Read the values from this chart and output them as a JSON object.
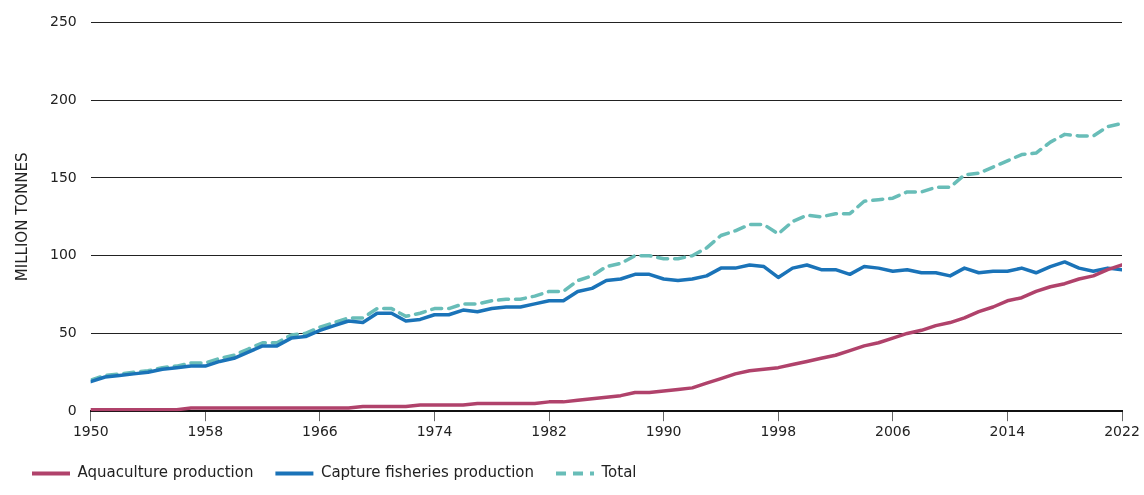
{
  "chart_data": {
    "type": "line",
    "x": [
      1950,
      1951,
      1952,
      1953,
      1954,
      1955,
      1956,
      1957,
      1958,
      1959,
      1960,
      1961,
      1962,
      1963,
      1964,
      1965,
      1966,
      1967,
      1968,
      1969,
      1970,
      1971,
      1972,
      1973,
      1974,
      1975,
      1976,
      1977,
      1978,
      1979,
      1980,
      1981,
      1982,
      1983,
      1984,
      1985,
      1986,
      1987,
      1988,
      1989,
      1990,
      1991,
      1992,
      1993,
      1994,
      1995,
      1996,
      1997,
      1998,
      1999,
      2000,
      2001,
      2002,
      2003,
      2004,
      2005,
      2006,
      2007,
      2008,
      2009,
      2010,
      2011,
      2012,
      2013,
      2014,
      2015,
      2016,
      2017,
      2018,
      2019,
      2020,
      2021,
      2022
    ],
    "series": [
      {
        "name": "Aquaculture production",
        "color": "#b0426b",
        "line_style": "solid",
        "values": [
          1,
          1,
          1,
          1,
          1,
          1,
          1,
          2,
          2,
          2,
          2,
          2,
          2,
          2,
          2,
          2,
          2,
          2,
          2,
          3,
          3,
          3,
          3,
          4,
          4,
          4,
          4,
          5,
          5,
          5,
          5,
          5,
          6,
          6,
          7,
          8,
          9,
          10,
          12,
          12,
          13,
          14,
          15,
          18,
          21,
          24,
          26,
          27,
          28,
          30,
          32,
          34,
          36,
          39,
          42,
          44,
          47,
          50,
          52,
          55,
          57,
          60,
          64,
          67,
          71,
          73,
          77,
          80,
          82,
          85,
          87,
          91,
          94
        ]
      },
      {
        "name": "Capture fisheries production",
        "color": "#1a73b8",
        "line_style": "solid",
        "values": [
          19,
          22,
          23,
          24,
          25,
          27,
          28,
          29,
          29,
          32,
          34,
          38,
          42,
          42,
          47,
          48,
          52,
          55,
          58,
          57,
          63,
          63,
          58,
          59,
          62,
          62,
          65,
          64,
          66,
          67,
          67,
          69,
          71,
          71,
          77,
          79,
          84,
          85,
          88,
          88,
          85,
          84,
          85,
          87,
          92,
          92,
          94,
          93,
          86,
          92,
          94,
          91,
          91,
          88,
          93,
          92,
          90,
          91,
          89,
          89,
          87,
          92,
          89,
          90,
          90,
          92,
          89,
          93,
          96,
          92,
          90,
          92,
          91
        ]
      },
      {
        "name": "Total",
        "color": "#68bdb8",
        "line_style": "dashed",
        "values": [
          20,
          23,
          24,
          25,
          26,
          28,
          29,
          31,
          31,
          34,
          36,
          40,
          44,
          44,
          49,
          50,
          54,
          57,
          60,
          60,
          66,
          66,
          61,
          63,
          66,
          66,
          69,
          69,
          71,
          72,
          72,
          74,
          77,
          77,
          84,
          87,
          93,
          95,
          100,
          100,
          98,
          98,
          100,
          105,
          113,
          116,
          120,
          120,
          114,
          122,
          126,
          125,
          127,
          127,
          135,
          136,
          137,
          141,
          141,
          144,
          144,
          152,
          153,
          157,
          161,
          165,
          166,
          173,
          178,
          177,
          177,
          183,
          185
        ]
      }
    ],
    "ylabel": "MILLION TONNES",
    "xlim": [
      1950,
      2022
    ],
    "xticks": [
      1950,
      1958,
      1966,
      1974,
      1982,
      1990,
      1998,
      2006,
      2014,
      2022
    ],
    "ylim": [
      0,
      250
    ],
    "yticks": [
      0,
      50,
      100,
      150,
      200,
      250
    ],
    "grid": "y",
    "legend": "bottom",
    "marker": "none"
  }
}
